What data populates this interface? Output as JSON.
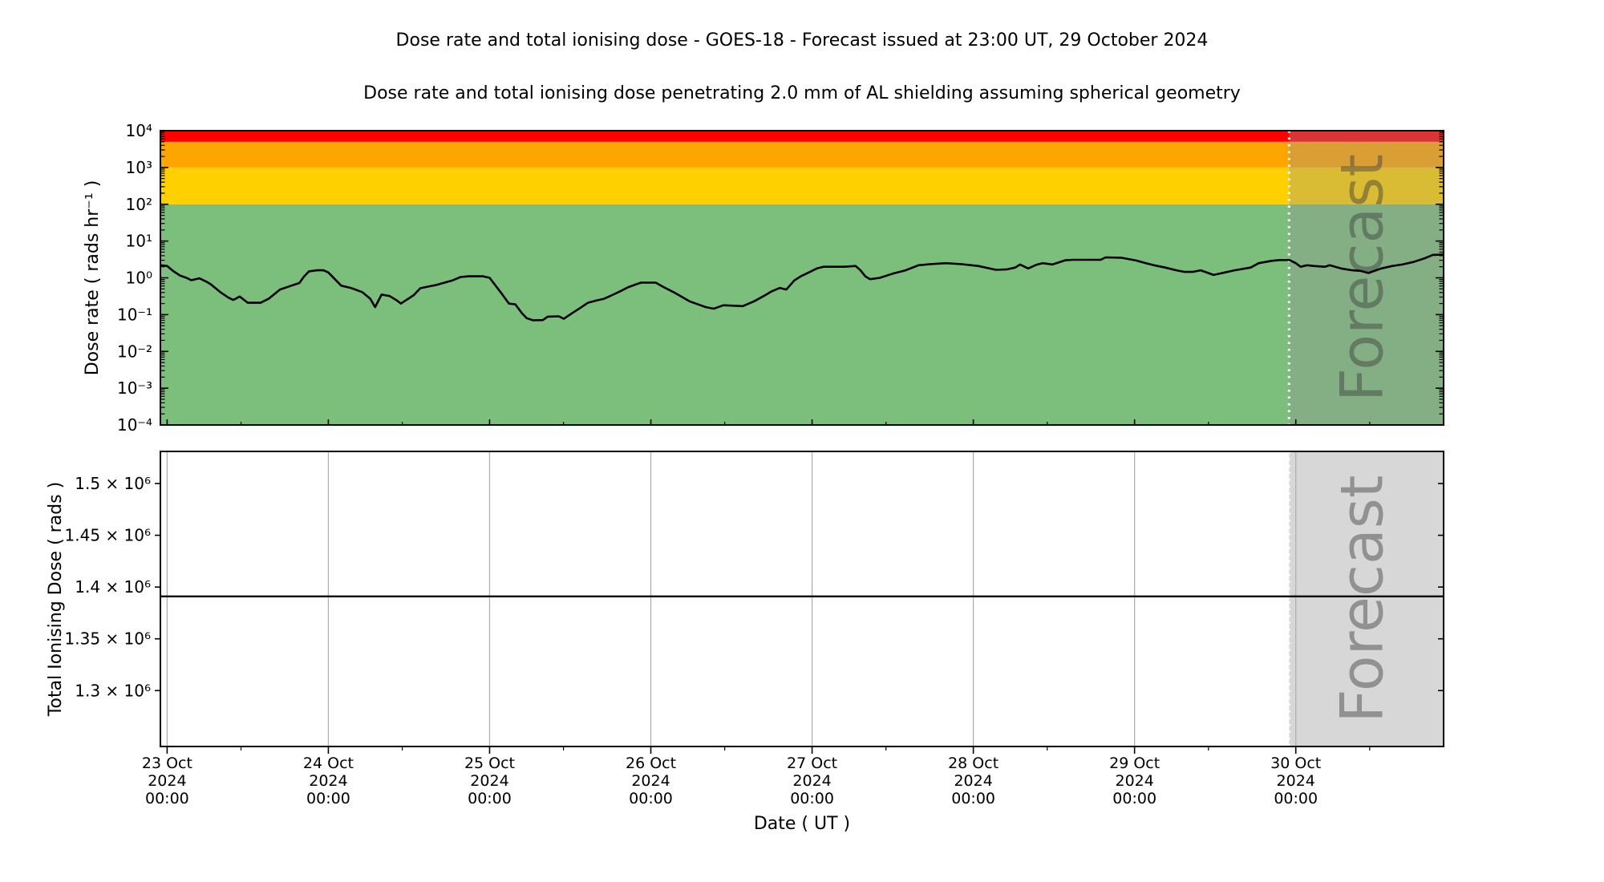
{
  "title": "Dose rate and total ionising dose - GOES-18 - Forecast issued at 23:00 UT, 29 October 2024",
  "subtitle": "Dose rate and total ionising dose penetrating 2.0 mm of AL shielding assuming spherical geometry",
  "watermark": "Forecast",
  "colors": {
    "band_green": "#7cbe7c",
    "band_yellow": "#ffd000",
    "band_orange": "#ffa500",
    "band_red": "#ff0000",
    "forecast_overlay": "rgba(150,150,150,0.35)",
    "watermark_text": "rgba(60,60,60,0.45)",
    "gridline": "#b0b0b0",
    "line": "#000000",
    "forecast_divider": "#ffffff"
  },
  "x_axis": {
    "label": "Date ( UT )",
    "domain_days": [
      -0.0417,
      7.9167
    ],
    "minor_interval_days": 0.5,
    "ticks": [
      {
        "t": 0,
        "lines": [
          "23 Oct",
          "2024",
          "00:00"
        ]
      },
      {
        "t": 1,
        "lines": [
          "24 Oct",
          "2024",
          "00:00"
        ]
      },
      {
        "t": 2,
        "lines": [
          "25 Oct",
          "2024",
          "00:00"
        ]
      },
      {
        "t": 3,
        "lines": [
          "26 Oct",
          "2024",
          "00:00"
        ]
      },
      {
        "t": 4,
        "lines": [
          "27 Oct",
          "2024",
          "00:00"
        ]
      },
      {
        "t": 5,
        "lines": [
          "28 Oct",
          "2024",
          "00:00"
        ]
      },
      {
        "t": 6,
        "lines": [
          "29 Oct",
          "2024",
          "00:00"
        ]
      },
      {
        "t": 7,
        "lines": [
          "30 Oct",
          "2024",
          "00:00"
        ]
      }
    ]
  },
  "forecast": {
    "start_day": 6.9583,
    "label": "Forecast"
  },
  "chart_data": [
    {
      "type": "line",
      "name": "dose_rate",
      "ylabel": "Dose rate ( rads hr⁻¹ )",
      "yscale": "log",
      "ylim": [
        0.0001,
        10000
      ],
      "yticks": [
        {
          "value": 10000,
          "label": "10⁴"
        },
        {
          "value": 1000,
          "label": "10³"
        },
        {
          "value": 100,
          "label": "10²"
        },
        {
          "value": 10,
          "label": "10¹"
        },
        {
          "value": 1,
          "label": "10⁰"
        },
        {
          "value": 0.1,
          "label": "10⁻¹"
        },
        {
          "value": 0.01,
          "label": "10⁻²"
        },
        {
          "value": 0.001,
          "label": "10⁻³"
        },
        {
          "value": 0.0001,
          "label": "10⁻⁴"
        }
      ],
      "bands": [
        {
          "name": "green",
          "from": 0.0001,
          "to": 100,
          "color_key": "band_green"
        },
        {
          "name": "yellow",
          "from": 100,
          "to": 1000,
          "color_key": "band_yellow"
        },
        {
          "name": "orange",
          "from": 1000,
          "to": 5000,
          "color_key": "band_orange"
        },
        {
          "name": "red",
          "from": 5000,
          "to": 10000,
          "color_key": "band_red"
        }
      ],
      "series": [
        {
          "name": "dose_rate_rads_per_hr",
          "points": [
            [
              -0.04,
              2.2
            ],
            [
              0,
              2.1
            ],
            [
              0.04,
              1.5
            ],
            [
              0.08,
              1.15
            ],
            [
              0.12,
              1.0
            ],
            [
              0.15,
              0.86
            ],
            [
              0.2,
              0.97
            ],
            [
              0.24,
              0.8
            ],
            [
              0.27,
              0.67
            ],
            [
              0.33,
              0.41
            ],
            [
              0.38,
              0.29
            ],
            [
              0.41,
              0.25
            ],
            [
              0.45,
              0.31
            ],
            [
              0.5,
              0.21
            ],
            [
              0.58,
              0.21
            ],
            [
              0.63,
              0.27
            ],
            [
              0.7,
              0.48
            ],
            [
              0.77,
              0.61
            ],
            [
              0.82,
              0.72
            ],
            [
              0.85,
              1.1
            ],
            [
              0.88,
              1.5
            ],
            [
              0.93,
              1.6
            ],
            [
              0.97,
              1.6
            ],
            [
              1,
              1.4
            ],
            [
              1.08,
              0.61
            ],
            [
              1.14,
              0.53
            ],
            [
              1.21,
              0.41
            ],
            [
              1.26,
              0.27
            ],
            [
              1.29,
              0.16
            ],
            [
              1.33,
              0.35
            ],
            [
              1.38,
              0.32
            ],
            [
              1.42,
              0.25
            ],
            [
              1.45,
              0.2
            ],
            [
              1.53,
              0.34
            ],
            [
              1.57,
              0.52
            ],
            [
              1.62,
              0.58
            ],
            [
              1.67,
              0.64
            ],
            [
              1.72,
              0.74
            ],
            [
              1.77,
              0.85
            ],
            [
              1.82,
              1.05
            ],
            [
              1.87,
              1.1
            ],
            [
              1.96,
              1.1
            ],
            [
              2,
              1.0
            ],
            [
              2.07,
              0.4
            ],
            [
              2.12,
              0.2
            ],
            [
              2.16,
              0.19
            ],
            [
              2.2,
              0.11
            ],
            [
              2.23,
              0.08
            ],
            [
              2.27,
              0.07
            ],
            [
              2.33,
              0.071
            ],
            [
              2.36,
              0.088
            ],
            [
              2.43,
              0.09
            ],
            [
              2.46,
              0.077
            ],
            [
              2.51,
              0.108
            ],
            [
              2.56,
              0.15
            ],
            [
              2.61,
              0.21
            ],
            [
              2.66,
              0.24
            ],
            [
              2.71,
              0.27
            ],
            [
              2.76,
              0.34
            ],
            [
              2.81,
              0.43
            ],
            [
              2.86,
              0.56
            ],
            [
              2.91,
              0.67
            ],
            [
              2.94,
              0.74
            ],
            [
              3.03,
              0.74
            ],
            [
              3.08,
              0.56
            ],
            [
              3.14,
              0.41
            ],
            [
              3.24,
              0.23
            ],
            [
              3.34,
              0.16
            ],
            [
              3.39,
              0.145
            ],
            [
              3.45,
              0.18
            ],
            [
              3.57,
              0.17
            ],
            [
              3.64,
              0.23
            ],
            [
              3.7,
              0.32
            ],
            [
              3.75,
              0.43
            ],
            [
              3.8,
              0.53
            ],
            [
              3.84,
              0.48
            ],
            [
              3.89,
              0.85
            ],
            [
              3.93,
              1.1
            ],
            [
              3.98,
              1.4
            ],
            [
              4.03,
              1.8
            ],
            [
              4.07,
              2.0
            ],
            [
              4.2,
              2.0
            ],
            [
              4.27,
              2.1
            ],
            [
              4.3,
              1.6
            ],
            [
              4.33,
              1.1
            ],
            [
              4.36,
              0.92
            ],
            [
              4.42,
              1.0
            ],
            [
              4.5,
              1.3
            ],
            [
              4.58,
              1.6
            ],
            [
              4.66,
              2.2
            ],
            [
              4.73,
              2.35
            ],
            [
              4.83,
              2.5
            ],
            [
              4.93,
              2.35
            ],
            [
              5.03,
              2.1
            ],
            [
              5.14,
              1.65
            ],
            [
              5.21,
              1.7
            ],
            [
              5.26,
              1.9
            ],
            [
              5.29,
              2.3
            ],
            [
              5.34,
              1.8
            ],
            [
              5.39,
              2.25
            ],
            [
              5.43,
              2.5
            ],
            [
              5.49,
              2.3
            ],
            [
              5.57,
              3.0
            ],
            [
              5.62,
              3.1
            ],
            [
              5.79,
              3.1
            ],
            [
              5.82,
              3.6
            ],
            [
              5.92,
              3.5
            ],
            [
              6.01,
              2.95
            ],
            [
              6.07,
              2.5
            ],
            [
              6.12,
              2.2
            ],
            [
              6.19,
              1.9
            ],
            [
              6.26,
              1.6
            ],
            [
              6.31,
              1.45
            ],
            [
              6.36,
              1.45
            ],
            [
              6.41,
              1.6
            ],
            [
              6.49,
              1.2
            ],
            [
              6.56,
              1.4
            ],
            [
              6.62,
              1.6
            ],
            [
              6.72,
              1.9
            ],
            [
              6.77,
              2.5
            ],
            [
              6.85,
              2.9
            ],
            [
              6.9,
              3.05
            ],
            [
              6.96,
              3.05
            ],
            [
              7,
              2.5
            ],
            [
              7.03,
              2.0
            ],
            [
              7.07,
              2.2
            ],
            [
              7.11,
              2.1
            ],
            [
              7.18,
              2.0
            ],
            [
              7.21,
              2.2
            ],
            [
              7.28,
              1.8
            ],
            [
              7.35,
              1.6
            ],
            [
              7.4,
              1.55
            ],
            [
              7.45,
              1.35
            ],
            [
              7.53,
              1.8
            ],
            [
              7.6,
              2.1
            ],
            [
              7.66,
              2.3
            ],
            [
              7.73,
              2.7
            ],
            [
              7.8,
              3.4
            ],
            [
              7.85,
              4.2
            ],
            [
              7.92,
              4.3
            ]
          ]
        }
      ]
    },
    {
      "type": "line",
      "name": "total_ionising_dose",
      "ylabel": "Total Ionising Dose ( rads )",
      "yscale": "linear",
      "ylim": [
        1246000,
        1531000
      ],
      "yticks": [
        {
          "value": 1500000,
          "label": "1.5 × 10⁶"
        },
        {
          "value": 1450000,
          "label": "1.45 × 10⁶"
        },
        {
          "value": 1400000,
          "label": "1.4 × 10⁶"
        },
        {
          "value": 1350000,
          "label": "1.35 × 10⁶"
        },
        {
          "value": 1300000,
          "label": "1.3 × 10⁶"
        }
      ],
      "grid": "vertical",
      "series": [
        {
          "name": "total_dose_rads",
          "value": 1391000,
          "points": [
            [
              -0.0417,
              1391000
            ],
            [
              7.9167,
              1391000
            ]
          ]
        }
      ]
    }
  ]
}
